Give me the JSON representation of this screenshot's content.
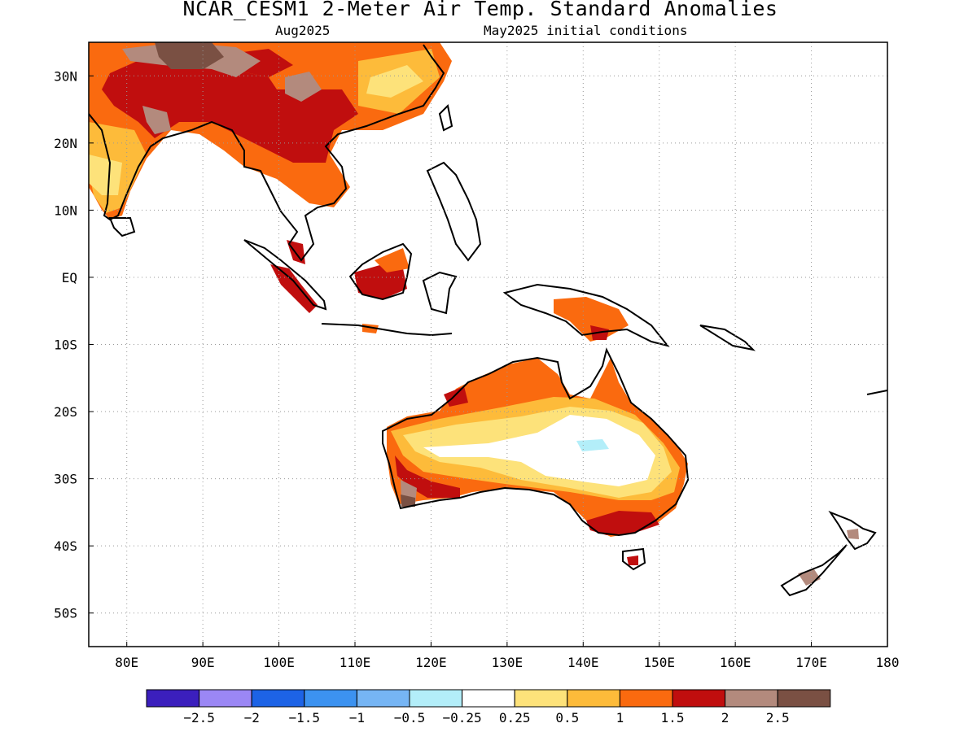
{
  "title": "NCAR_CESM1 2-Meter Air Temp. Standard Anomalies",
  "valid_month": "Aug2025",
  "init_text": "May2025 initial conditions",
  "axes": {
    "lon_labels": [
      "80E",
      "90E",
      "100E",
      "110E",
      "120E",
      "130E",
      "140E",
      "150E",
      "160E",
      "170E",
      "180"
    ],
    "lat_labels": [
      "30N",
      "20N",
      "10N",
      "EQ",
      "10S",
      "20S",
      "30S",
      "40S",
      "50S"
    ],
    "lon_range": [
      75,
      180
    ],
    "lat_range": [
      -55,
      35
    ],
    "grid": true
  },
  "colorbar": {
    "colors": [
      "#3b1fbd",
      "#9b87f5",
      "#1d63e6",
      "#3c92f0",
      "#76b5f4",
      "#b3eef9",
      "#ffffff",
      "#fde27a",
      "#fdbb3a",
      "#fa6a0f",
      "#c00e0e",
      "#b38a7d",
      "#7a5043"
    ],
    "labels": [
      "−2.5",
      "−2",
      "−1.5",
      "−1",
      "−0.5",
      "−0.25",
      "0.25",
      "0.5",
      "1",
      "1.5",
      "2",
      "2.5"
    ]
  }
}
